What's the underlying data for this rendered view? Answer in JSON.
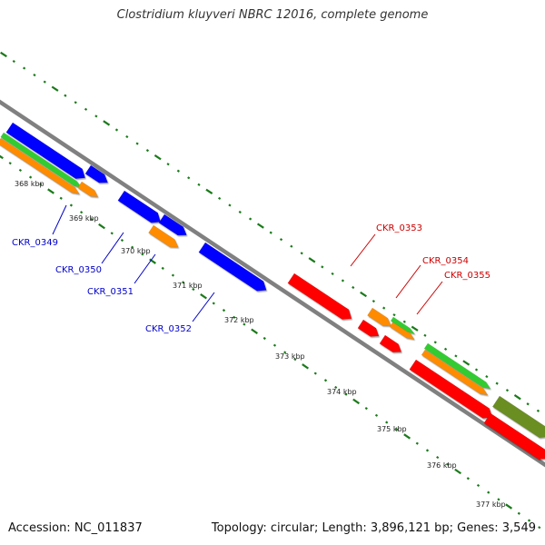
{
  "title": "Clostridium kluyveri NBRC 12016, complete genome",
  "footer": {
    "accession": "Accession: NC_011837",
    "summary": "Topology: circular; Length: 3,896,121 bp; Genes: 3,549"
  },
  "colors": {
    "cds_forward": "#0000ff",
    "cds_reverse": "#ff0000",
    "orange_track": "#ff8c00",
    "green_track": "#33cc33",
    "olive_track": "#6b8e23",
    "backbone": "#8c8c8c",
    "tick_marks": "#1a7a1a",
    "label_forward": "#0000cc",
    "label_reverse": "#cc0000"
  },
  "kbp_ticks": [
    "368 kbp",
    "369 kbp",
    "370 kbp",
    "371 kbp",
    "372 kbp",
    "373 kbp",
    "374 kbp",
    "375 kbp",
    "376 kbp",
    "377 kbp"
  ],
  "genes": [
    {
      "id": "CKR_0349"
    },
    {
      "id": "CKR_0350"
    },
    {
      "id": "CKR_0351"
    },
    {
      "id": "CKR_0352"
    },
    {
      "id": "CKR_0353"
    },
    {
      "id": "CKR_0354"
    },
    {
      "id": "CKR_0355"
    }
  ]
}
